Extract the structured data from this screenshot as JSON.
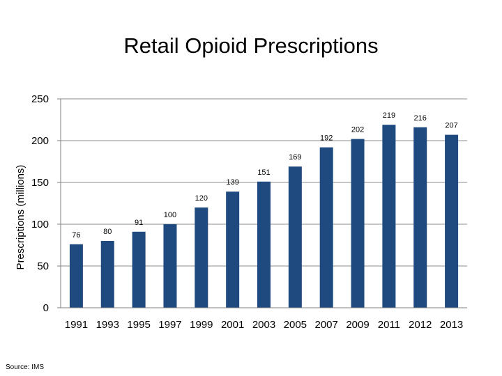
{
  "slide": {
    "title": "Retail Opioid Prescriptions",
    "source": "Source: IMS"
  },
  "colors": {
    "bar": "#1f4a80",
    "grid": "#8c8c8c",
    "axis": "#7f7f7f"
  },
  "chart_data": {
    "type": "bar",
    "title": "Retail Opioid Prescriptions",
    "xlabel": "",
    "ylabel": "Prescriptions (millions)",
    "categories": [
      "1991",
      "1993",
      "1995",
      "1997",
      "1999",
      "2001",
      "2003",
      "2005",
      "2007",
      "2009",
      "2011",
      "2012",
      "2013"
    ],
    "values": [
      76,
      80,
      91,
      100,
      120,
      139,
      151,
      169,
      192,
      202,
      219,
      216,
      207
    ],
    "ylim": [
      0,
      250
    ],
    "yticks": [
      0,
      50,
      100,
      150,
      200,
      250
    ],
    "grid": true,
    "data_labels": true,
    "legend": "none"
  }
}
